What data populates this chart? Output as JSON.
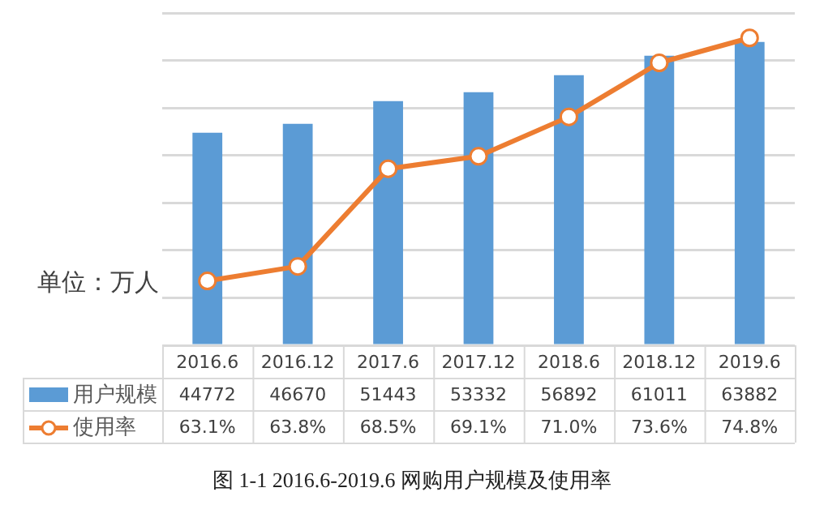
{
  "chart_data": {
    "type": "bar",
    "title": "图 1-1 2016.6-2019.6 网购用户规模及使用率",
    "annotations": [
      "单位：万人"
    ],
    "categories": [
      "2016.6",
      "2016.12",
      "2017.6",
      "2017.12",
      "2018.6",
      "2018.12",
      "2019.6"
    ],
    "series": [
      {
        "name": "用户规模",
        "type": "bar",
        "color": "#5b9bd5",
        "values": [
          44772,
          46670,
          51443,
          53332,
          56892,
          61011,
          63882
        ],
        "value_labels": [
          "44772",
          "46670",
          "51443",
          "53332",
          "56892",
          "61011",
          "63882"
        ]
      },
      {
        "name": "使用率",
        "type": "line",
        "axis": "y2",
        "color": "#ed7d31",
        "marker": "circle",
        "values": [
          63.1,
          63.8,
          68.5,
          69.1,
          71.0,
          73.6,
          74.8
        ],
        "value_labels": [
          "63.1%",
          "63.8%",
          "68.5%",
          "69.1%",
          "71.0%",
          "73.6%",
          "74.8%"
        ]
      }
    ],
    "ylim": [
      0,
      70000
    ],
    "yticks": [
      {
        "value": 0,
        "label": null
      },
      {
        "value": 10000,
        "label": null
      },
      {
        "value": 20000,
        "label": null
      },
      {
        "value": 30000,
        "label": null
      },
      {
        "value": 40000,
        "label": null
      },
      {
        "value": 50000,
        "label": null
      },
      {
        "value": 60000,
        "label": null
      },
      {
        "value": 70000,
        "label": null
      }
    ],
    "y2lim": [
      60,
      76
    ],
    "grid": "y",
    "legend": "bottom left"
  }
}
